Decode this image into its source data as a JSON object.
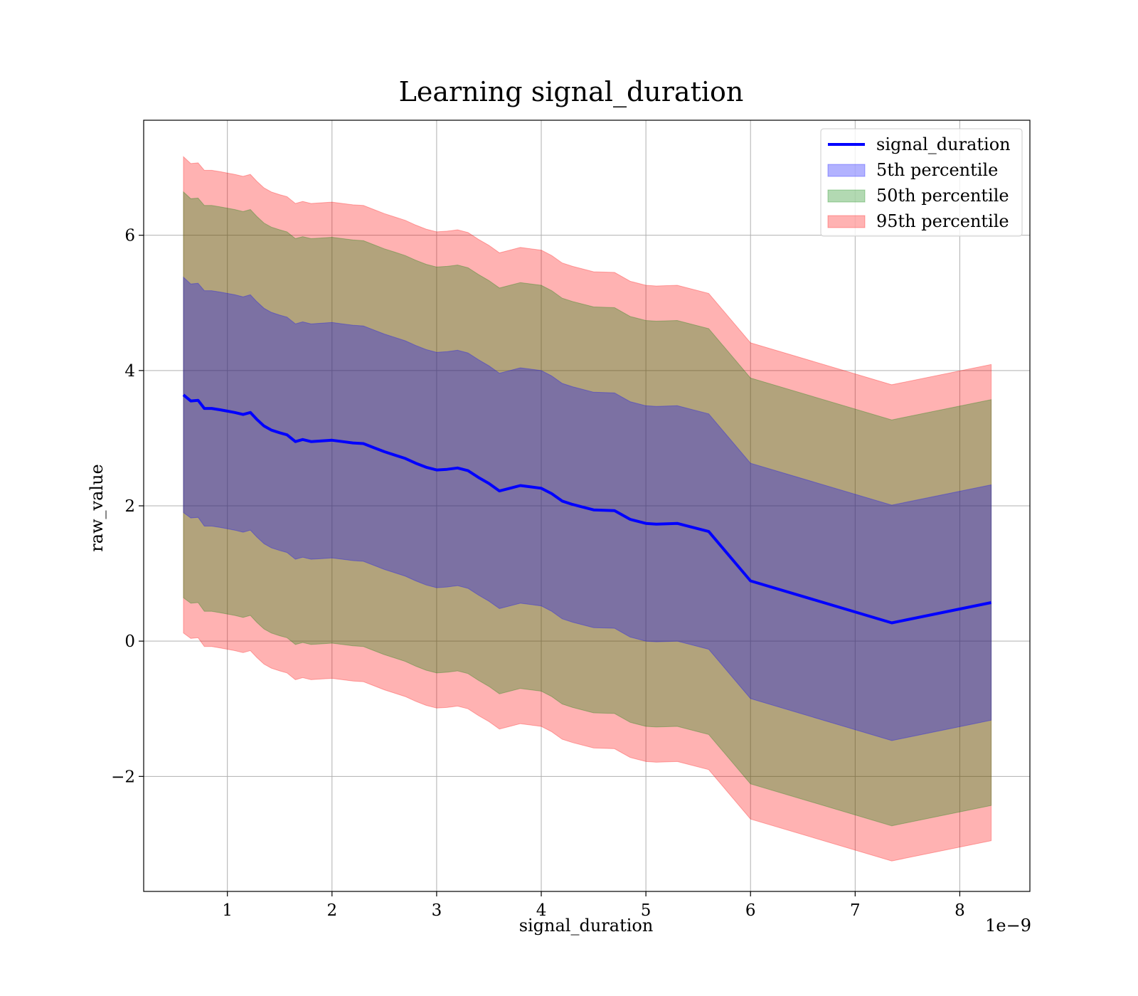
{
  "chart_data": {
    "type": "area",
    "title": "Learning signal_duration",
    "xlabel": "signal_duration",
    "ylabel": "raw_value",
    "x_offset_text": "1e−9",
    "xlim": [
      0.2,
      8.67
    ],
    "ylim": [
      -3.7,
      7.7
    ],
    "grid": true,
    "legend_position": "top-right",
    "x_ticks": [
      1,
      2,
      3,
      4,
      5,
      6,
      7,
      8
    ],
    "x_tick_labels": [
      "1",
      "2",
      "3",
      "4",
      "5",
      "6",
      "7",
      "8"
    ],
    "y_ticks": [
      -2,
      0,
      2,
      4,
      6
    ],
    "y_tick_labels": [
      "−2",
      "0",
      "2",
      "4",
      "6"
    ],
    "x": [
      0.58,
      0.65,
      0.72,
      0.78,
      0.85,
      0.93,
      1.0,
      1.07,
      1.15,
      1.22,
      1.28,
      1.35,
      1.42,
      1.5,
      1.57,
      1.65,
      1.72,
      1.8,
      1.9,
      2.0,
      2.1,
      2.2,
      2.3,
      2.4,
      2.5,
      2.6,
      2.7,
      2.8,
      2.9,
      3.0,
      3.1,
      3.2,
      3.3,
      3.4,
      3.5,
      3.6,
      3.7,
      3.8,
      3.9,
      4.0,
      4.1,
      4.2,
      4.3,
      4.5,
      4.7,
      4.85,
      5.0,
      5.1,
      5.3,
      5.6,
      6.0,
      7.35,
      8.3
    ],
    "series": [
      {
        "name": "signal_duration",
        "type": "line",
        "color": "#0000ff",
        "values": [
          3.64,
          3.55,
          3.56,
          3.44,
          3.44,
          3.42,
          3.4,
          3.38,
          3.35,
          3.38,
          3.28,
          3.18,
          3.12,
          3.08,
          3.05,
          2.95,
          2.98,
          2.95,
          2.96,
          2.97,
          2.95,
          2.93,
          2.92,
          2.86,
          2.8,
          2.75,
          2.7,
          2.63,
          2.57,
          2.53,
          2.54,
          2.56,
          2.52,
          2.42,
          2.33,
          2.22,
          2.26,
          2.3,
          2.28,
          2.26,
          2.18,
          2.07,
          2.02,
          1.94,
          1.93,
          1.8,
          1.74,
          1.73,
          1.74,
          1.62,
          0.89,
          0.27,
          0.57
        ]
      }
    ],
    "bands": [
      {
        "name": "5th percentile",
        "color": "#0000ff",
        "opacity": 0.3,
        "upper": [
          5.38,
          5.28,
          5.29,
          5.18,
          5.18,
          5.16,
          5.14,
          5.12,
          5.09,
          5.12,
          5.02,
          4.92,
          4.86,
          4.82,
          4.79,
          4.69,
          4.72,
          4.69,
          4.7,
          4.71,
          4.69,
          4.67,
          4.66,
          4.6,
          4.54,
          4.49,
          4.44,
          4.37,
          4.31,
          4.27,
          4.28,
          4.3,
          4.26,
          4.16,
          4.07,
          3.96,
          4.0,
          4.04,
          4.02,
          4.0,
          3.92,
          3.81,
          3.76,
          3.68,
          3.67,
          3.54,
          3.48,
          3.47,
          3.48,
          3.36,
          2.63,
          2.01,
          2.31
        ],
        "lower": [
          1.9,
          1.82,
          1.83,
          1.7,
          1.7,
          1.68,
          1.66,
          1.64,
          1.61,
          1.64,
          1.54,
          1.44,
          1.38,
          1.34,
          1.31,
          1.21,
          1.24,
          1.21,
          1.22,
          1.23,
          1.21,
          1.19,
          1.18,
          1.12,
          1.06,
          1.01,
          0.96,
          0.89,
          0.83,
          0.79,
          0.8,
          0.82,
          0.78,
          0.68,
          0.59,
          0.48,
          0.52,
          0.56,
          0.54,
          0.52,
          0.44,
          0.33,
          0.28,
          0.2,
          0.19,
          0.06,
          0.0,
          -0.01,
          0.0,
          -0.12,
          -0.85,
          -1.47,
          -1.17
        ]
      },
      {
        "name": "50th percentile",
        "color": "#008000",
        "opacity": 0.3,
        "upper": [
          6.64,
          6.54,
          6.55,
          6.44,
          6.44,
          6.42,
          6.4,
          6.38,
          6.35,
          6.38,
          6.28,
          6.18,
          6.12,
          6.08,
          6.05,
          5.95,
          5.98,
          5.95,
          5.96,
          5.97,
          5.95,
          5.93,
          5.92,
          5.86,
          5.8,
          5.75,
          5.7,
          5.63,
          5.57,
          5.53,
          5.54,
          5.56,
          5.52,
          5.42,
          5.33,
          5.22,
          5.26,
          5.3,
          5.28,
          5.26,
          5.18,
          5.07,
          5.02,
          4.94,
          4.93,
          4.8,
          4.74,
          4.73,
          4.74,
          4.62,
          3.89,
          3.27,
          3.57
        ],
        "lower": [
          0.64,
          0.56,
          0.57,
          0.44,
          0.44,
          0.42,
          0.4,
          0.38,
          0.35,
          0.38,
          0.28,
          0.18,
          0.12,
          0.08,
          0.05,
          -0.05,
          -0.02,
          -0.05,
          -0.04,
          -0.03,
          -0.05,
          -0.07,
          -0.08,
          -0.14,
          -0.2,
          -0.25,
          -0.3,
          -0.37,
          -0.43,
          -0.47,
          -0.46,
          -0.44,
          -0.48,
          -0.58,
          -0.67,
          -0.78,
          -0.74,
          -0.7,
          -0.72,
          -0.74,
          -0.82,
          -0.93,
          -0.98,
          -1.06,
          -1.07,
          -1.2,
          -1.26,
          -1.27,
          -1.26,
          -1.38,
          -2.11,
          -2.73,
          -2.43
        ]
      },
      {
        "name": "95th percentile",
        "color": "#ff0000",
        "opacity": 0.3,
        "upper": [
          7.16,
          7.06,
          7.07,
          6.96,
          6.96,
          6.94,
          6.92,
          6.9,
          6.87,
          6.9,
          6.8,
          6.7,
          6.64,
          6.6,
          6.57,
          6.47,
          6.5,
          6.47,
          6.48,
          6.49,
          6.47,
          6.45,
          6.44,
          6.38,
          6.32,
          6.27,
          6.22,
          6.15,
          6.09,
          6.05,
          6.06,
          6.08,
          6.04,
          5.94,
          5.85,
          5.74,
          5.78,
          5.82,
          5.8,
          5.78,
          5.7,
          5.59,
          5.54,
          5.46,
          5.45,
          5.32,
          5.26,
          5.25,
          5.26,
          5.14,
          4.41,
          3.79,
          4.09
        ],
        "lower": [
          0.12,
          0.04,
          0.05,
          -0.08,
          -0.08,
          -0.1,
          -0.12,
          -0.14,
          -0.17,
          -0.14,
          -0.24,
          -0.34,
          -0.4,
          -0.44,
          -0.47,
          -0.57,
          -0.54,
          -0.57,
          -0.56,
          -0.55,
          -0.57,
          -0.59,
          -0.6,
          -0.66,
          -0.72,
          -0.77,
          -0.82,
          -0.89,
          -0.95,
          -0.99,
          -0.98,
          -0.96,
          -1.0,
          -1.1,
          -1.19,
          -1.3,
          -1.26,
          -1.22,
          -1.24,
          -1.26,
          -1.34,
          -1.45,
          -1.5,
          -1.58,
          -1.59,
          -1.72,
          -1.78,
          -1.79,
          -1.78,
          -1.9,
          -2.63,
          -3.25,
          -2.95
        ]
      }
    ],
    "legend": [
      {
        "label": "signal_duration",
        "kind": "line",
        "color": "#0000ff"
      },
      {
        "label": "5th percentile",
        "kind": "patch",
        "color": "#0000ff"
      },
      {
        "label": "50th percentile",
        "kind": "patch",
        "color": "#008000"
      },
      {
        "label": "95th percentile",
        "kind": "patch",
        "color": "#ff0000"
      }
    ]
  }
}
